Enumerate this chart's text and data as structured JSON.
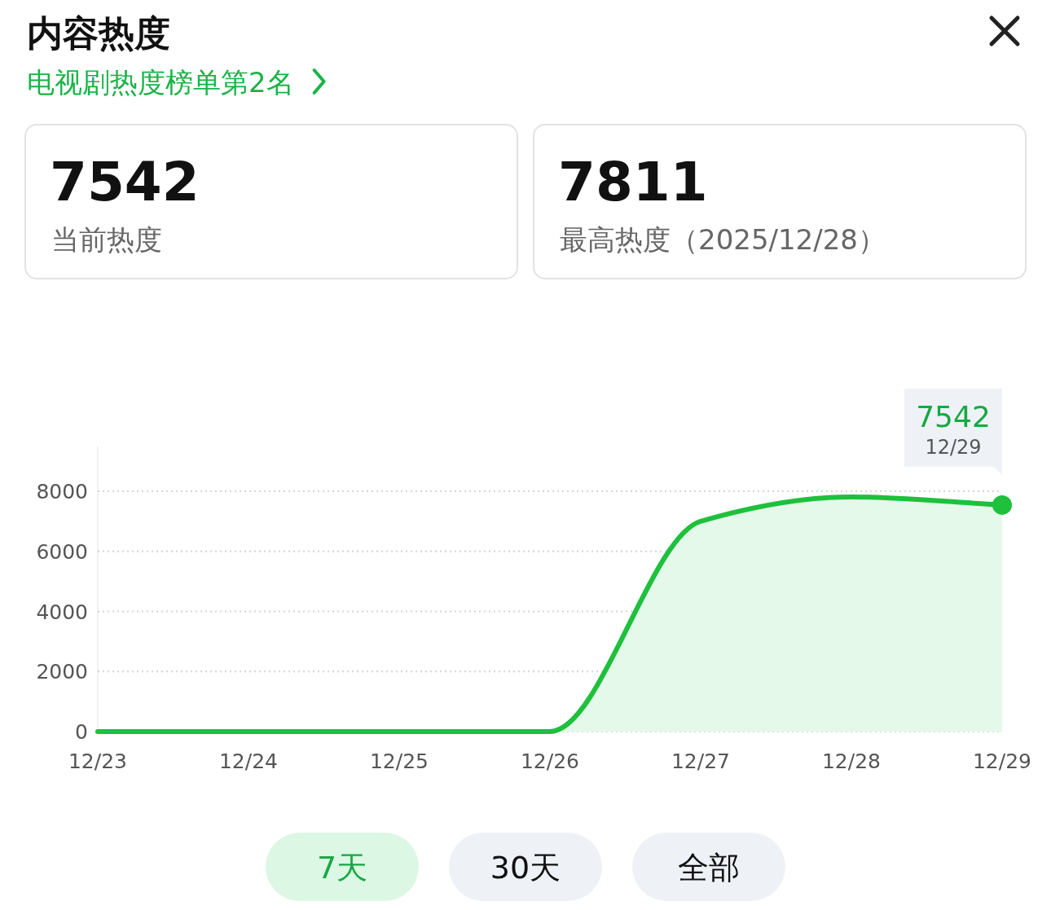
{
  "chart_data": {
    "type": "area",
    "title": "内容热度",
    "subtitle": "电视剧热度榜单第2名",
    "categories": [
      "12/23",
      "12/24",
      "12/25",
      "12/26",
      "12/27",
      "12/28",
      "12/29"
    ],
    "series": [
      {
        "color": "#1ec03c",
        "values": [
          0,
          0,
          0,
          0,
          7000,
          7811,
          7542
        ]
      }
    ],
    "ylim": [
      0,
      9500
    ],
    "yticks": [
      0,
      2000,
      4000,
      6000,
      8000
    ],
    "grid": "y",
    "marker": "none",
    "line_style": "solid",
    "annotations": [
      {
        "text": "7542",
        "x": "12/29",
        "y": 7542
      },
      "12/29",
      "7542",
      "当前热度",
      "7811",
      "最高热度（2025/12/28）",
      "7天",
      "30天",
      "全部"
    ]
  }
}
